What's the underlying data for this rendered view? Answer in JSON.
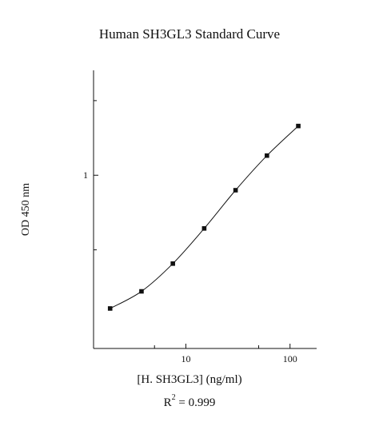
{
  "chart_data": {
    "type": "line",
    "title": "Human SH3GL3 Standard Curve",
    "xlabel": "[H. SH3GL3] (ng/ml)",
    "ylabel": "OD 450 nm",
    "x_scale": "log",
    "y_scale": "log",
    "xlim": [
      1.3,
      180
    ],
    "ylim": [
      0.2,
      2.65
    ],
    "x_ticks": [
      10,
      100
    ],
    "y_ticks": [
      1
    ],
    "grid": false,
    "series": [
      {
        "x": [
          1.875,
          3.75,
          7.5,
          15,
          30,
          60,
          120
        ],
        "y": [
          0.29,
          0.34,
          0.44,
          0.61,
          0.87,
          1.2,
          1.58
        ],
        "marker": "square",
        "color": "#111111"
      }
    ],
    "annotation": {
      "r2_prefix": "R",
      "r2_exp": "2",
      "r2_value": " = 0.999"
    }
  }
}
